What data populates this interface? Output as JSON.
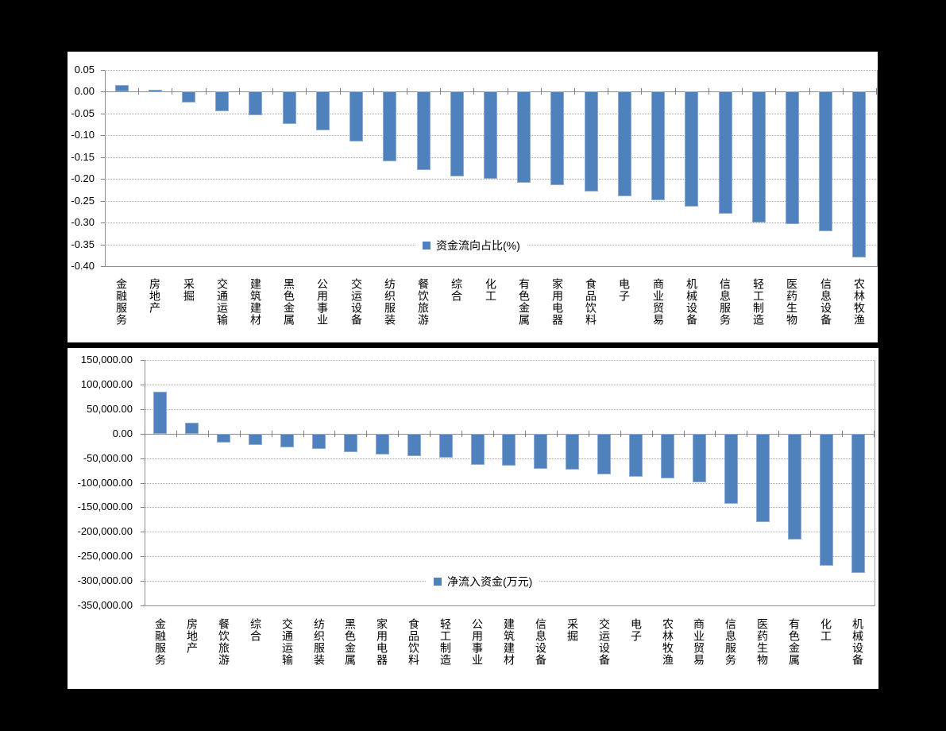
{
  "colors": {
    "background": "#000000",
    "chart_background": "#FFFFFF",
    "bar_fill": "#4F81BD",
    "bar_border": "#8FADD4",
    "gridline": "#A8A8A8",
    "axis": "#7F7F7F",
    "text": "#000000"
  },
  "chart_data": [
    {
      "type": "bar",
      "legend": "资金流向占比(%)",
      "legend_position": "inside-bottom-center",
      "grid": "horizontal-dotted",
      "categories": [
        "金融服务",
        "房地产",
        "采掘",
        "交通运输",
        "建筑建材",
        "黑色金属",
        "公用事业",
        "交运设备",
        "纺织服装",
        "餐饮旅游",
        "综合",
        "化工",
        "有色金属",
        "家用电器",
        "食品饮料",
        "电子",
        "商业贸易",
        "机械设备",
        "信息服务",
        "轻工制造",
        "医药生物",
        "信息设备",
        "农林牧渔"
      ],
      "values": [
        0.015,
        0.005,
        -0.025,
        -0.045,
        -0.055,
        -0.075,
        -0.09,
        -0.115,
        -0.16,
        -0.18,
        -0.195,
        -0.2,
        -0.21,
        -0.215,
        -0.23,
        -0.24,
        -0.25,
        -0.265,
        -0.28,
        -0.3,
        -0.305,
        -0.32,
        -0.38
      ],
      "ylim": [
        -0.4,
        0.05
      ],
      "y_tick_values": [
        0.05,
        0,
        -0.05,
        -0.1,
        -0.15,
        -0.2,
        -0.25,
        -0.3,
        -0.35,
        -0.4
      ],
      "y_tick_labels": [
        "0.05",
        "0.00",
        "-0.05",
        "-0.10",
        "-0.15",
        "-0.20",
        "-0.25",
        "-0.30",
        "-0.35",
        "-0.40"
      ]
    },
    {
      "type": "bar",
      "legend": "净流入资金(万元)",
      "legend_position": "inside-bottom-center",
      "grid": "horizontal-dotted",
      "categories": [
        "金融服务",
        "房地产",
        "餐饮旅游",
        "综合",
        "交通运输",
        "纺织服装",
        "黑色金属",
        "家用电器",
        "食品饮料",
        "轻工制造",
        "公用事业",
        "建筑建材",
        "信息设备",
        "采掘",
        "交运设备",
        "电子",
        "农林牧渔",
        "商业贸易",
        "信息服务",
        "医药生物",
        "有色金属",
        "化工",
        "机械设备"
      ],
      "values": [
        85000,
        22000,
        -18000,
        -23000,
        -27000,
        -30000,
        -38000,
        -42000,
        -45000,
        -49000,
        -63000,
        -65000,
        -71000,
        -73000,
        -82000,
        -87000,
        -91000,
        -99000,
        -143000,
        -180000,
        -215000,
        -268000,
        -283000
      ],
      "ylim": [
        -350000,
        150000
      ],
      "y_tick_values": [
        150000,
        100000,
        50000,
        0,
        -50000,
        -100000,
        -150000,
        -200000,
        -250000,
        -300000,
        -350000
      ],
      "y_tick_labels": [
        "150,000.00",
        "100,000.00",
        "50,000.00",
        "0.00",
        "-50,000.00",
        "-100,000.00",
        "-150,000.00",
        "-200,000.00",
        "-250,000.00",
        "-300,000.00",
        "-350,000.00"
      ]
    }
  ]
}
